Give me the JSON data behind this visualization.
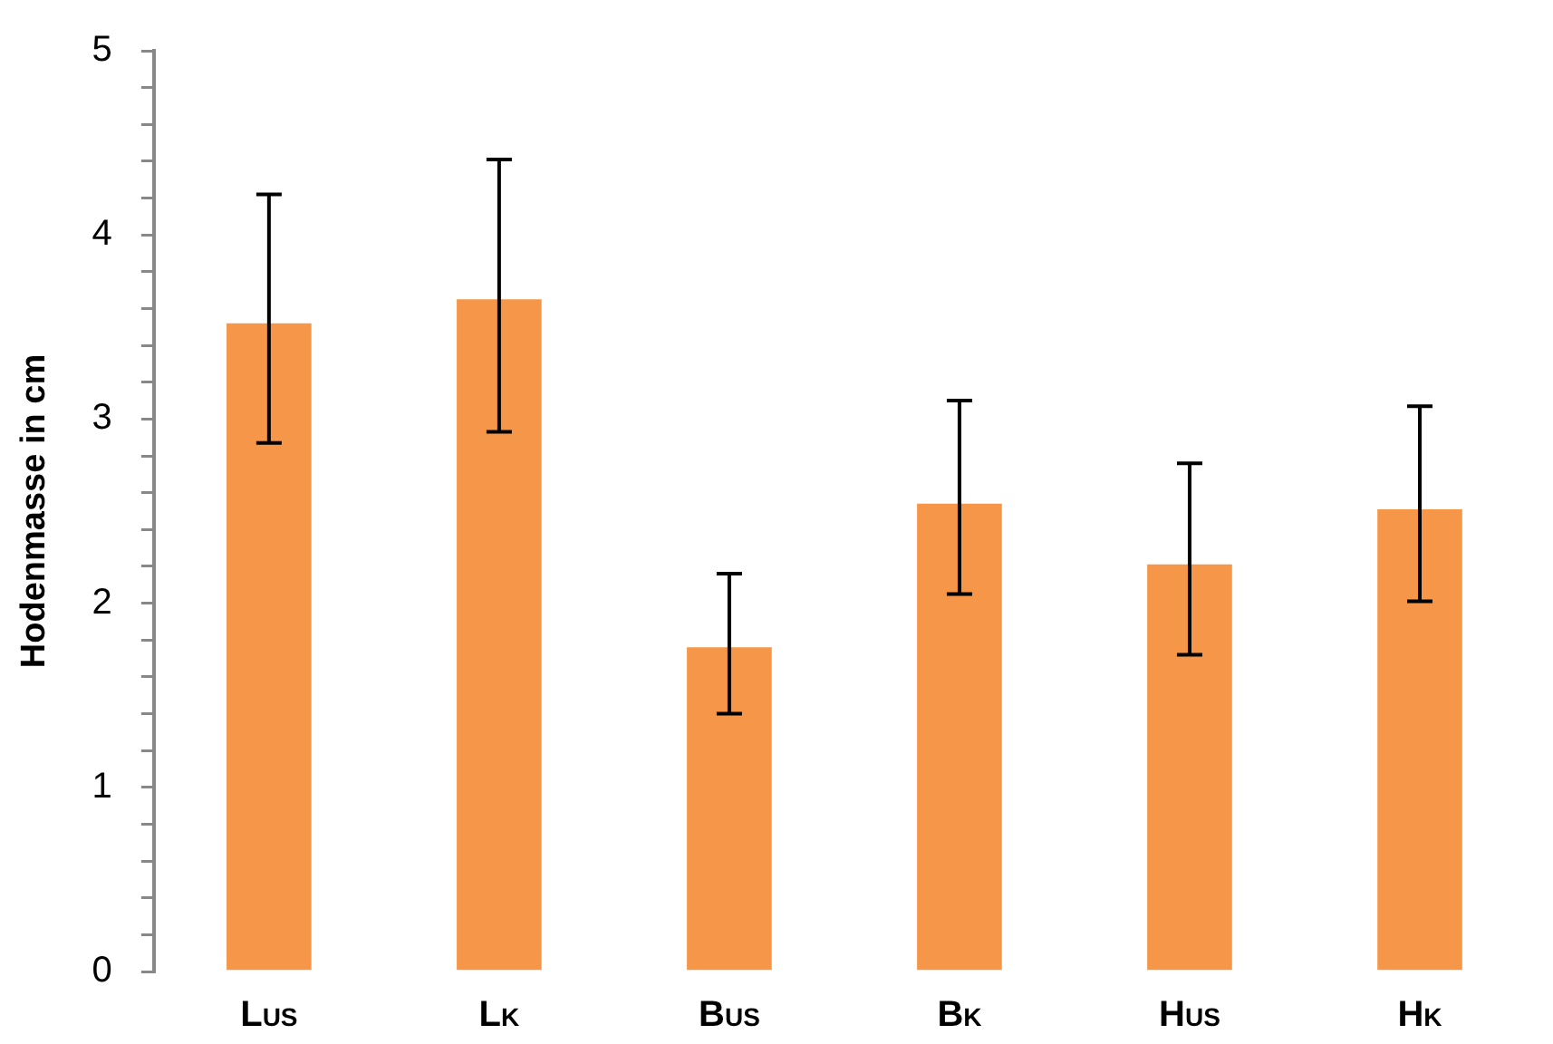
{
  "chart_data": {
    "type": "bar",
    "ylabel": "Hodenmasse in cm",
    "categories": [
      "L$_{US}$",
      "L$_{K}$",
      "B$_{US}$",
      "B$_{K}$",
      "H$_{US}$",
      "H$_{K}$"
    ],
    "values": [
      3.54,
      3.67,
      1.78,
      2.56,
      2.23,
      2.53
    ],
    "errors": [
      [
        2.87,
        4.22
      ],
      [
        2.93,
        4.41
      ],
      [
        1.4,
        2.16
      ],
      [
        2.05,
        3.1
      ],
      [
        1.72,
        2.76
      ],
      [
        2.01,
        3.07
      ]
    ],
    "color": "#f59649",
    "ylim": [
      0,
      5
    ],
    "yticks": [
      0,
      {
        "value": 0.2,
        "label": null
      },
      {
        "value": 0.4,
        "label": null
      },
      {
        "value": 0.6,
        "label": null
      },
      {
        "value": 0.8,
        "label": null
      },
      1,
      {
        "value": 1.2,
        "label": null
      },
      {
        "value": 1.4,
        "label": null
      },
      {
        "value": 1.6,
        "label": null
      },
      {
        "value": 1.8,
        "label": null
      },
      2,
      {
        "value": 2.2,
        "label": null
      },
      {
        "value": 2.4,
        "label": null
      },
      {
        "value": 2.6,
        "label": null
      },
      {
        "value": 2.8,
        "label": null
      },
      3,
      {
        "value": 3.2,
        "label": null
      },
      {
        "value": 3.4,
        "label": null
      },
      {
        "value": 3.6,
        "label": null
      },
      {
        "value": 3.8,
        "label": null
      },
      4,
      {
        "value": 4.2,
        "label": null
      },
      {
        "value": 4.4,
        "label": null
      },
      {
        "value": 4.6,
        "label": null
      },
      {
        "value": 4.8,
        "label": null
      },
      5
    ],
    "grid": false,
    "legend": false
  }
}
